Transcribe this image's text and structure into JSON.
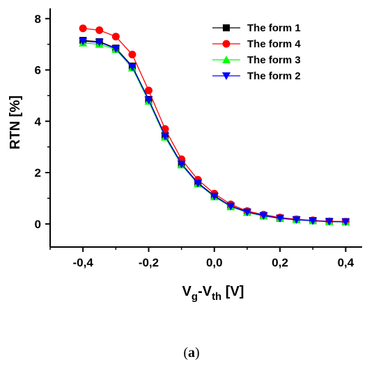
{
  "chart_data": {
    "type": "line",
    "xlabel": {
      "base1": "V",
      "sub1": "g",
      "sep": "-V",
      "sub2": "th",
      "unit": " [V]"
    },
    "ylabel": "RTN [%]",
    "xlim": [
      -0.5,
      0.45
    ],
    "ylim": [
      -0.9,
      8.4
    ],
    "xticks": [
      {
        "value": -0.4,
        "label": "-0,4"
      },
      {
        "value": -0.2,
        "label": "-0,2"
      },
      {
        "value": 0.0,
        "label": "0,0"
      },
      {
        "value": 0.2,
        "label": "0,2"
      },
      {
        "value": 0.4,
        "label": "0,4"
      }
    ],
    "yticks": [
      {
        "value": 0,
        "label": "0"
      },
      {
        "value": 2,
        "label": "2"
      },
      {
        "value": 4,
        "label": "4"
      },
      {
        "value": 6,
        "label": "6"
      },
      {
        "value": 8,
        "label": "8"
      }
    ],
    "x": [
      -0.4,
      -0.35,
      -0.3,
      -0.25,
      -0.2,
      -0.15,
      -0.1,
      -0.05,
      0.0,
      0.05,
      0.1,
      0.15,
      0.2,
      0.25,
      0.3,
      0.35,
      0.4
    ],
    "series": [
      {
        "name": "The form 1",
        "color": "#000000",
        "marker": "square",
        "values": [
          7.15,
          7.1,
          6.85,
          6.15,
          4.85,
          3.45,
          2.35,
          1.6,
          1.1,
          0.7,
          0.47,
          0.33,
          0.23,
          0.17,
          0.13,
          0.1,
          0.09
        ]
      },
      {
        "name": "The form 4",
        "color": "#ff0000",
        "marker": "circle",
        "values": [
          7.62,
          7.55,
          7.3,
          6.6,
          5.2,
          3.7,
          2.52,
          1.72,
          1.18,
          0.76,
          0.5,
          0.36,
          0.25,
          0.18,
          0.14,
          0.1,
          0.09
        ]
      },
      {
        "name": "The form 3",
        "color": "#00ff00",
        "marker": "triangle-up",
        "values": [
          7.05,
          7.0,
          6.8,
          6.08,
          4.78,
          3.38,
          2.3,
          1.56,
          1.06,
          0.67,
          0.45,
          0.31,
          0.21,
          0.16,
          0.12,
          0.09,
          0.08
        ]
      },
      {
        "name": "The form 2",
        "color": "#0000ff",
        "marker": "triangle-down",
        "values": [
          7.12,
          7.08,
          6.83,
          6.12,
          4.83,
          3.42,
          2.33,
          1.58,
          1.08,
          0.69,
          0.46,
          0.32,
          0.22,
          0.16,
          0.12,
          0.09,
          0.08
        ]
      }
    ],
    "legend_position": "top-right"
  },
  "caption": {
    "open": "(",
    "letter": "a",
    "close": ")"
  }
}
